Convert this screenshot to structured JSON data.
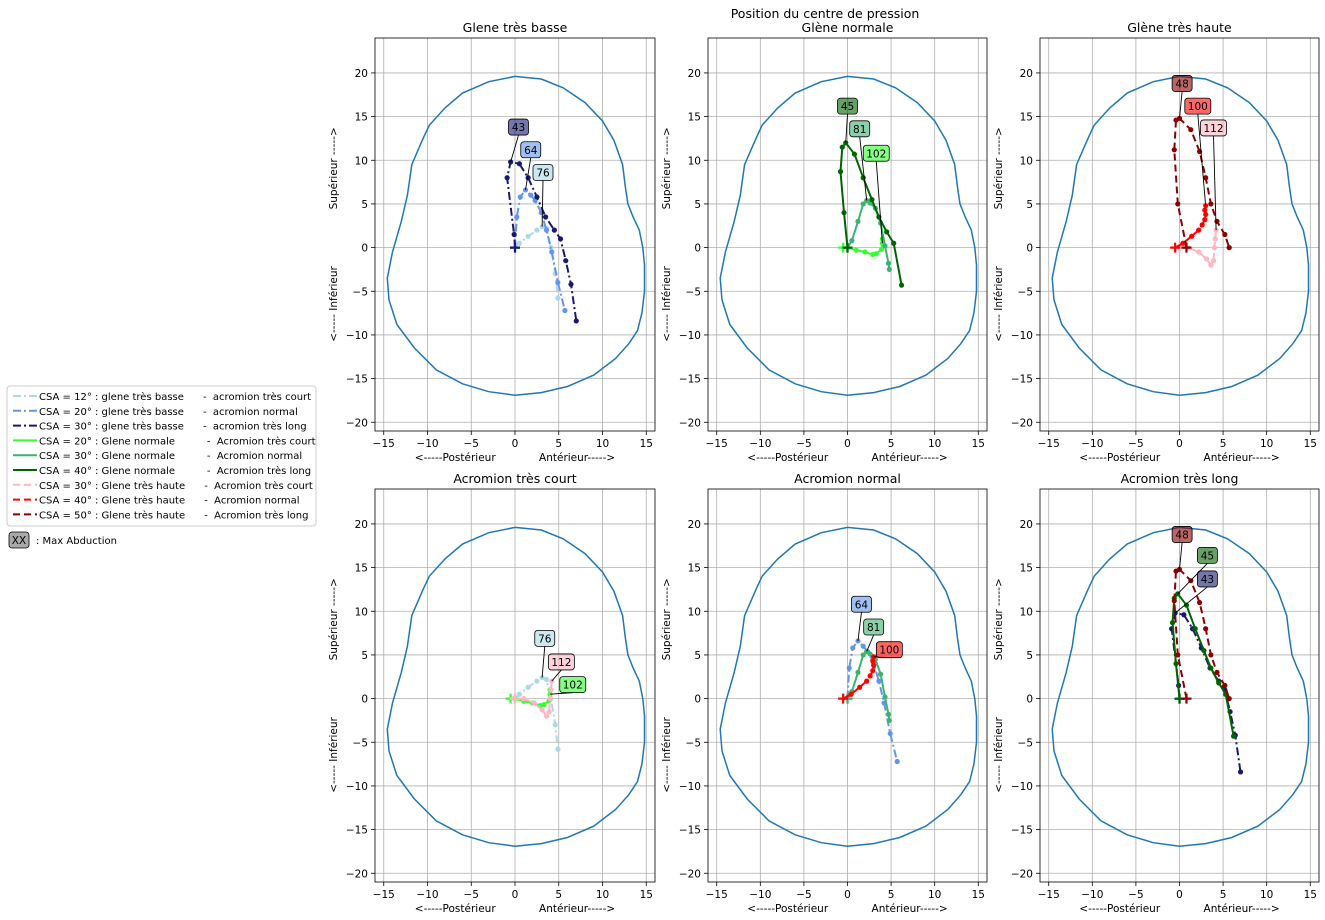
{
  "figure": {
    "suptitle": "Position du centre de pression",
    "axes": {
      "xlim": [
        -16,
        16
      ],
      "ylim": [
        -21,
        24
      ],
      "xticks": [
        -15,
        -10,
        -5,
        0,
        5,
        10,
        15
      ],
      "yticks": [
        -20,
        -15,
        -10,
        -5,
        0,
        5,
        10,
        15,
        20
      ],
      "xlabel": "<-----Postérieur             Antérieur----->",
      "ylabel": "<----- Inférieur                 Supérieur ----->",
      "grid": true,
      "outline_color": "#1f77b4"
    },
    "legend": {
      "placement": "left",
      "entries": [
        {
          "text": "CSA = 12° : glene très basse      -  acromion très court",
          "color": "#add8e6",
          "dash": "dashdot"
        },
        {
          "text": "CSA = 20° : glene très basse      -  acromion normal",
          "color": "#6495ed",
          "dash": "dashdot"
        },
        {
          "text": "CSA = 30° : glene très basse      -  acromion très long",
          "color": "#191970",
          "dash": "dashdot"
        },
        {
          "text": "CSA = 20° : Glene normale          -  Acromion très court",
          "color": "#32ff32",
          "dash": "solid"
        },
        {
          "text": "CSA = 30° : Glene normale          -  Acromion normal",
          "color": "#3cb371",
          "dash": "solid"
        },
        {
          "text": "CSA = 40° : Glene normale          -  Acromion très long",
          "color": "#006400",
          "dash": "solid"
        },
        {
          "text": "CSA = 30° : Glene très haute      -  Acromion très court",
          "color": "#ffb6c1",
          "dash": "dashed"
        },
        {
          "text": "CSA = 40° : Glene très haute      -  Acromion normal",
          "color": "#ff0000",
          "dash": "dashed"
        },
        {
          "text": "CSA = 50° : Glene très haute      -  Acromion très long",
          "color": "#8b0000",
          "dash": "dashed"
        }
      ],
      "max_label_box": "XX",
      "max_label_text": ": Max Abduction"
    }
  },
  "chart_data": {
    "type": "line",
    "outline": [
      [
        0,
        19.6
      ],
      [
        3,
        19.3
      ],
      [
        5.5,
        18.3
      ],
      [
        8,
        16.6
      ],
      [
        10,
        14.5
      ],
      [
        11.3,
        12.3
      ],
      [
        12.3,
        9.5
      ],
      [
        12.6,
        7
      ],
      [
        12.9,
        5
      ],
      [
        13.5,
        3.5
      ],
      [
        14.2,
        2
      ],
      [
        14.6,
        0
      ],
      [
        14.8,
        -2
      ],
      [
        14.8,
        -5
      ],
      [
        14.5,
        -7.5
      ],
      [
        14,
        -9.5
      ],
      [
        13,
        -11
      ],
      [
        11.5,
        -12.7
      ],
      [
        9,
        -14.6
      ],
      [
        6,
        -15.9
      ],
      [
        3,
        -16.6
      ],
      [
        0,
        -16.9
      ],
      [
        -3,
        -16.5
      ],
      [
        -6,
        -15.6
      ],
      [
        -9,
        -14
      ],
      [
        -11.5,
        -11.5
      ],
      [
        -13.5,
        -8.8
      ],
      [
        -14.4,
        -6
      ],
      [
        -14.6,
        -3.5
      ],
      [
        -14,
        -0.5
      ],
      [
        -13,
        3
      ],
      [
        -12.3,
        6
      ],
      [
        -11.8,
        9.5
      ],
      [
        -10.5,
        12.5
      ],
      [
        -9.8,
        14
      ],
      [
        -8,
        16
      ],
      [
        -6,
        17.7
      ],
      [
        -3,
        19
      ],
      [
        0,
        19.6
      ]
    ],
    "series": [
      {
        "key": "gtb_ac",
        "x": [
          0,
          0.5,
          1.5,
          2.5,
          3.1,
          3.6,
          4.1,
          4.6,
          4.9
        ],
        "y": [
          0,
          0.5,
          1.3,
          2.0,
          2.4,
          2.2,
          0,
          -3.0,
          -5.8
        ],
        "peak": 4
      },
      {
        "key": "gtb_an",
        "x": [
          0,
          0.2,
          0.6,
          1.2,
          1.8,
          2.3,
          3.0,
          3.6,
          4.2,
          4.9,
          5.7
        ],
        "y": [
          0,
          3.5,
          5.8,
          6.6,
          6.0,
          5.4,
          4.0,
          2.0,
          -0.5,
          -4.0,
          -7.2
        ],
        "peak": 3
      },
      {
        "key": "gtb_al",
        "x": [
          0,
          -0.1,
          -0.9,
          -0.5,
          0.5,
          1.5,
          2.5,
          3.5,
          4.5,
          5.2,
          5.8,
          6.4,
          7.0
        ],
        "y": [
          0,
          1.5,
          8.0,
          9.8,
          9.6,
          8.0,
          5.8,
          3.5,
          2.0,
          1.0,
          -1.5,
          -4.2,
          -8.4
        ],
        "peak": 3
      },
      {
        "key": "gn_ac",
        "x": [
          -0.5,
          0,
          1,
          2,
          2.9,
          3.3,
          3.9,
          4.0,
          4.0
        ],
        "y": [
          0,
          0,
          -0.3,
          -0.5,
          -0.8,
          -0.7,
          -0.2,
          0.5,
          1.0
        ],
        "peak": 7
      },
      {
        "key": "gn_an",
        "x": [
          0,
          0.5,
          1.2,
          1.8,
          2.2,
          2.6,
          3.2,
          3.8,
          4.3,
          4.7,
          4.8
        ],
        "y": [
          0,
          0.8,
          3.0,
          5.0,
          5.4,
          5.1,
          4.5,
          2.8,
          0.2,
          -1.8,
          -2.5
        ],
        "peak": 4
      },
      {
        "key": "gn_al",
        "x": [
          0,
          -0.4,
          -0.8,
          -0.6,
          -0.2,
          0.8,
          1.8,
          2.8,
          3.6,
          4.5,
          5.3,
          6.2
        ],
        "y": [
          0,
          4.0,
          8.7,
          11.5,
          12.0,
          10.7,
          8.0,
          5.5,
          3.5,
          1.8,
          0.5,
          -4.3
        ],
        "peak": 4
      },
      {
        "key": "gth_ac",
        "x": [
          0,
          1.0,
          2.2,
          3.1,
          3.6,
          3.9,
          4.0,
          4.1,
          4.2
        ],
        "y": [
          0,
          0,
          -0.5,
          -1.3,
          -2.0,
          -1.5,
          0,
          1.0,
          2.0
        ],
        "peak": 8
      },
      {
        "key": "gth_an",
        "x": [
          -0.5,
          0.4,
          1.4,
          2.2,
          2.6,
          2.9,
          3.0,
          2.9,
          3.0
        ],
        "y": [
          0,
          0.5,
          1.3,
          2.0,
          2.6,
          3.2,
          3.8,
          4.3,
          4.8
        ],
        "peak": 8
      },
      {
        "key": "gth_al",
        "x": [
          0.8,
          -0.2,
          -0.6,
          -0.4,
          0,
          1.3,
          2.3,
          3.0,
          3.6,
          4.3,
          5.2,
          5.7
        ],
        "y": [
          0,
          5.0,
          11.2,
          14.6,
          14.8,
          13.5,
          11.0,
          8.0,
          5.0,
          3.0,
          1.5,
          0.0
        ],
        "peak": 4
      }
    ],
    "panels": [
      {
        "title": "Glene très basse",
        "series": [
          "gtb_ac",
          "gtb_an",
          "gtb_al"
        ],
        "labels": [
          {
            "text": "43",
            "series": "gtb_al",
            "x": 0.4,
            "y": 13.8
          },
          {
            "text": "64",
            "series": "gtb_an",
            "x": 1.8,
            "y": 11.2
          },
          {
            "text": "76",
            "series": "gtb_ac",
            "x": 3.2,
            "y": 8.6
          }
        ]
      },
      {
        "title": "Glène normale",
        "series": [
          "gn_ac",
          "gn_an",
          "gn_al"
        ],
        "labels": [
          {
            "text": "45",
            "series": "gn_al",
            "x": 0.0,
            "y": 16.2
          },
          {
            "text": "81",
            "series": "gn_an",
            "x": 1.4,
            "y": 13.6
          },
          {
            "text": "102",
            "series": "gn_ac",
            "x": 3.3,
            "y": 10.8
          }
        ]
      },
      {
        "title": "Glène très haute",
        "series": [
          "gth_ac",
          "gth_an",
          "gth_al"
        ],
        "labels": [
          {
            "text": "48",
            "series": "gth_al",
            "x": 0.3,
            "y": 18.8
          },
          {
            "text": "100",
            "series": "gth_an",
            "x": 2.1,
            "y": 16.2
          },
          {
            "text": "112",
            "series": "gth_ac",
            "x": 3.9,
            "y": 13.7
          }
        ]
      },
      {
        "title": "Acromion très court",
        "series": [
          "gtb_ac",
          "gn_ac",
          "gth_ac"
        ],
        "labels": [
          {
            "text": "76",
            "series": "gtb_ac",
            "x": 3.4,
            "y": 6.9
          },
          {
            "text": "112",
            "series": "gth_ac",
            "x": 5.3,
            "y": 4.2
          },
          {
            "text": "102",
            "series": "gn_ac",
            "x": 6.6,
            "y": 1.6
          }
        ]
      },
      {
        "title": "Acromion normal",
        "series": [
          "gtb_an",
          "gn_an",
          "gth_an"
        ],
        "labels": [
          {
            "text": "64",
            "series": "gtb_an",
            "x": 1.6,
            "y": 10.8
          },
          {
            "text": "81",
            "series": "gn_an",
            "x": 3.0,
            "y": 8.2
          },
          {
            "text": "100",
            "series": "gth_an",
            "x": 4.8,
            "y": 5.6
          }
        ]
      },
      {
        "title": "Acromion très long",
        "series": [
          "gtb_al",
          "gn_al",
          "gth_al"
        ],
        "labels": [
          {
            "text": "48",
            "series": "gth_al",
            "x": 0.3,
            "y": 18.8
          },
          {
            "text": "45",
            "series": "gn_al",
            "x": 3.2,
            "y": 16.4
          },
          {
            "text": "43",
            "series": "gtb_al",
            "x": 3.2,
            "y": 13.7
          }
        ]
      }
    ]
  }
}
